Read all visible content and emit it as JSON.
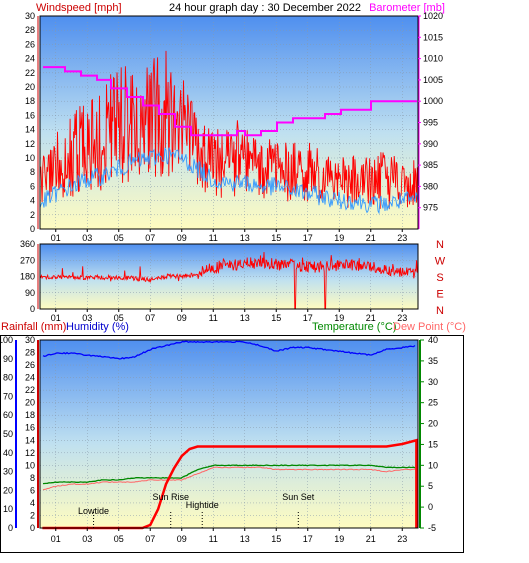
{
  "header": {
    "title": "24 hour graph day : 30 December 2022",
    "left_label": "Windspeed [mph]",
    "right_label": "Barometer [mb]"
  },
  "wind_panel": {
    "left_ticks": [
      "0",
      "2",
      "4",
      "6",
      "8",
      "10",
      "12",
      "14",
      "16",
      "18",
      "20",
      "22",
      "24",
      "26",
      "28",
      "30"
    ],
    "right_ticks": [
      "975",
      "980",
      "985",
      "990",
      "995",
      "1000",
      "1005",
      "1010",
      "1015",
      "1020"
    ],
    "x_ticks": [
      "01",
      "03",
      "05",
      "07",
      "09",
      "11",
      "13",
      "15",
      "17",
      "19",
      "21",
      "23"
    ]
  },
  "dir_panel": {
    "left_ticks": [
      "0",
      "90",
      "180",
      "270",
      "360"
    ],
    "compass": [
      "N",
      "W",
      "S",
      "E",
      "N"
    ],
    "x_ticks": [
      "01",
      "03",
      "05",
      "07",
      "09",
      "11",
      "13",
      "15",
      "17",
      "19",
      "21",
      "23"
    ]
  },
  "rain_panel": {
    "rain_label": "Rainfall (mm)",
    "humidity_label": "Humidity (%)",
    "temp_label": "Temperature (°C)",
    "dew_label": "Dew Point (°C)",
    "humidity_ticks": [
      "0",
      "10",
      "20",
      "30",
      "40",
      "50",
      "60",
      "70",
      "80",
      "90",
      "100"
    ],
    "rain_ticks": [
      "0",
      "2",
      "4",
      "6",
      "8",
      "10",
      "12",
      "14",
      "16",
      "18",
      "20",
      "22",
      "24",
      "26",
      "28",
      "30"
    ],
    "temp_ticks": [
      "-5",
      "0",
      "5",
      "10",
      "15",
      "20",
      "25",
      "30",
      "35",
      "40"
    ],
    "x_ticks": [
      "01",
      "03",
      "05",
      "07",
      "09",
      "11",
      "13",
      "15",
      "17",
      "19",
      "21",
      "23"
    ],
    "annotations": [
      {
        "label": "Lowtide",
        "hour": 3.4
      },
      {
        "label": "Sun Rise",
        "hour": 8.3
      },
      {
        "label": "Hightide",
        "hour": 10.3
      },
      {
        "label": "Sun Set",
        "hour": 16.4
      }
    ]
  },
  "colors": {
    "windspeed": "#ff0000",
    "windspeed_avg": "#3399ff",
    "barometer": "#ff00ff",
    "direction": "#ff0000",
    "rainfall": "#ff0000",
    "humidity": "#0000ff",
    "temperature": "#008800",
    "dewpoint": "#ff6666",
    "left_axis_label": "#cc0000",
    "right_axis_label": "#ff00ff",
    "humidity_label": "#0000cc",
    "temp_label": "#008800",
    "dew_label": "#ff6666"
  },
  "chart_data": [
    {
      "type": "line",
      "title": "24 hour graph day : 30 December 2022",
      "xlabel": "",
      "ylabel": "Windspeed [mph]",
      "y2label": "Barometer [mb]",
      "xlim": [
        0,
        24
      ],
      "ylim": [
        0,
        30
      ],
      "y2lim": [
        970,
        1020
      ],
      "series": [
        {
          "name": "Windspeed [mph]",
          "axis": "left",
          "x": [
            0,
            1,
            2,
            3,
            4,
            5,
            6,
            7,
            8,
            9,
            10,
            11,
            12,
            13,
            14,
            15,
            16,
            17,
            18,
            19,
            20,
            21,
            22,
            23,
            24
          ],
          "peak": [
            9,
            14,
            16,
            19,
            20,
            23,
            22,
            24,
            25,
            22,
            16,
            14,
            15,
            15,
            13,
            12,
            12,
            12,
            11,
            10,
            10,
            10,
            11,
            11,
            10
          ],
          "mean": [
            5,
            7,
            8,
            9,
            10,
            11,
            12,
            13,
            13,
            12,
            10,
            8,
            8,
            8,
            8,
            7,
            7,
            7,
            6,
            6,
            5,
            5,
            5,
            5,
            5
          ]
        },
        {
          "name": "Windspeed avg",
          "axis": "left",
          "x": [
            0,
            1,
            2,
            3,
            4,
            5,
            6,
            7,
            8,
            9,
            10,
            11,
            12,
            13,
            14,
            15,
            16,
            17,
            18,
            19,
            20,
            21,
            22,
            23,
            24
          ],
          "values": [
            3.5,
            5,
            6,
            7,
            7.5,
            8.5,
            9.5,
            10,
            10.5,
            10,
            8.5,
            7,
            6.5,
            6.5,
            6,
            6,
            5.5,
            5,
            4.5,
            4,
            4,
            3.5,
            3.5,
            4,
            4
          ]
        },
        {
          "name": "Barometer [mb]",
          "axis": "right",
          "x": [
            0,
            1.5,
            2.5,
            3.5,
            4.5,
            5.5,
            6.5,
            7.5,
            8.5,
            9.5,
            10.5,
            11.5,
            12.5,
            13,
            14,
            15,
            16,
            17,
            18,
            19,
            20,
            21,
            22,
            23,
            24
          ],
          "values": [
            1008,
            1007,
            1006,
            1005,
            1003,
            1001,
            999,
            997,
            994,
            992,
            992,
            992,
            993,
            992,
            993,
            995,
            996,
            996,
            997,
            998,
            998,
            1000,
            1000,
            1000,
            1000
          ]
        }
      ]
    },
    {
      "type": "line",
      "title": "",
      "xlabel": "",
      "ylabel": "",
      "xlim": [
        0,
        24
      ],
      "ylim": [
        0,
        360
      ],
      "series": [
        {
          "name": "Wind direction",
          "x": [
            0,
            2,
            4,
            6,
            7,
            8,
            9,
            10,
            11,
            12,
            13,
            14,
            15,
            16,
            17,
            18,
            19,
            20,
            21,
            22,
            23,
            24
          ],
          "values": [
            180,
            175,
            175,
            170,
            160,
            180,
            180,
            195,
            230,
            240,
            250,
            255,
            250,
            240,
            240,
            230,
            235,
            240,
            235,
            220,
            210,
            200
          ]
        }
      ]
    },
    {
      "type": "line",
      "title": "",
      "xlabel": "",
      "ylabel": "Rainfall (mm)",
      "y2label": "Temperature (°C)",
      "xlim": [
        0,
        24
      ],
      "ylim": [
        0,
        30
      ],
      "y2lim": [
        -5,
        40
      ],
      "humidity_lim": [
        0,
        100
      ],
      "series": [
        {
          "name": "Rainfall (mm)",
          "axis": "rain",
          "x": [
            0,
            6.5,
            7,
            7.5,
            8,
            8.5,
            9,
            9.5,
            10,
            11,
            12,
            16,
            20,
            22,
            23,
            24
          ],
          "values": [
            0,
            0,
            0.5,
            3,
            7,
            9.5,
            11.5,
            12.6,
            13,
            13,
            13,
            13,
            13,
            13,
            13.4,
            14
          ]
        },
        {
          "name": "Humidity (%)",
          "axis": "humidity",
          "x": [
            0,
            1,
            2,
            3,
            4,
            5,
            6,
            7,
            8,
            9,
            10,
            11,
            12,
            13,
            14,
            15,
            16,
            17,
            18,
            19,
            20,
            21,
            22,
            23,
            24
          ],
          "values": [
            91,
            93,
            93,
            92,
            91,
            90,
            91,
            95,
            97,
            99,
            99,
            99,
            99,
            99,
            97,
            94,
            96,
            96,
            95,
            94,
            93,
            92,
            95,
            96,
            97
          ]
        },
        {
          "name": "Temperature (°C)",
          "axis": "temp",
          "x": [
            0,
            1,
            2,
            3,
            4,
            5,
            6,
            7,
            8,
            9,
            10,
            11,
            12,
            13,
            14,
            15,
            16,
            17,
            18,
            19,
            20,
            21,
            22,
            23,
            24
          ],
          "values": [
            5.5,
            6,
            6,
            6,
            6.5,
            6.5,
            7,
            7,
            7,
            7,
            9,
            10,
            10,
            10,
            10,
            10,
            10,
            10,
            10,
            10,
            10,
            10,
            9.5,
            9.5,
            9.5
          ]
        },
        {
          "name": "Dew Point (°C)",
          "axis": "temp",
          "x": [
            0,
            1,
            2,
            3,
            4,
            5,
            6,
            7,
            8,
            9,
            10,
            11,
            12,
            13,
            14,
            15,
            16,
            17,
            18,
            19,
            20,
            21,
            22,
            23,
            24
          ],
          "values": [
            4,
            5,
            5.5,
            5.5,
            6,
            6,
            6,
            6.5,
            6.5,
            6.5,
            8,
            9.5,
            9.5,
            9.5,
            9.5,
            9,
            9,
            9,
            9,
            9,
            9,
            9,
            8.5,
            9,
            9
          ]
        }
      ]
    }
  ]
}
